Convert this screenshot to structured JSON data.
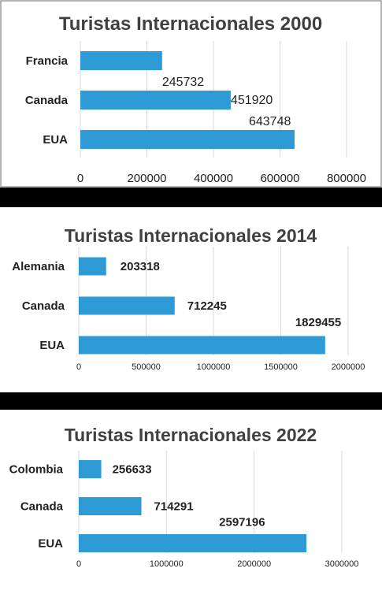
{
  "chart_data": [
    {
      "type": "bar",
      "orientation": "horizontal",
      "title": "Turistas Internacionales 2000",
      "categories": [
        "Francia",
        "Canada",
        "EUA"
      ],
      "values": [
        245732,
        451920,
        643748
      ],
      "xlim": [
        0,
        800000
      ],
      "ticks": [
        "0",
        "200000",
        "400000",
        "600000",
        "800000"
      ],
      "grid": true,
      "bar_color": "#2e9bd6"
    },
    {
      "type": "bar",
      "orientation": "horizontal",
      "title": "Turistas Internacionales 2014",
      "categories": [
        "Alemania",
        "Canada",
        "EUA"
      ],
      "values": [
        203318,
        712245,
        1829455
      ],
      "xlim": [
        0,
        2000000
      ],
      "ticks": [
        "0",
        "500000",
        "1000000",
        "1500000",
        "2000000"
      ],
      "grid": true,
      "bar_color": "#2e9bd6"
    },
    {
      "type": "bar",
      "orientation": "horizontal",
      "title": "Turistas Internacionales 2022",
      "categories": [
        "Colombia",
        "Canada",
        "EUA"
      ],
      "values": [
        256633,
        714291,
        2597196
      ],
      "xlim": [
        0,
        3000000
      ],
      "ticks": [
        "0",
        "1000000",
        "2000000",
        "3000000"
      ],
      "grid": true,
      "bar_color": "#2e9bd6"
    }
  ]
}
